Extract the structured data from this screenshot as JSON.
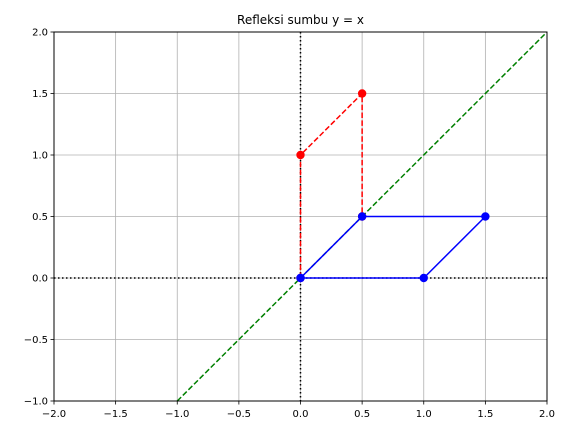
{
  "chart_data": {
    "type": "line",
    "title": "Refleksi sumbu y = x",
    "xlabel": "",
    "ylabel": "",
    "xlim": [
      -2.0,
      2.0
    ],
    "ylim": [
      -1.0,
      2.0
    ],
    "grid": true,
    "x_ticks": [
      -2.0,
      -1.5,
      -1.0,
      -0.5,
      0.0,
      0.5,
      1.0,
      1.5,
      2.0
    ],
    "y_ticks": [
      -1.0,
      -0.5,
      0.0,
      0.5,
      1.0,
      1.5,
      2.0
    ],
    "x_tick_labels": [
      "−2.0",
      "−1.5",
      "−1.0",
      "−0.5",
      "0.0",
      "0.5",
      "1.0",
      "1.5",
      "2.0"
    ],
    "y_tick_labels": [
      "−1.0",
      "−0.5",
      "0.0",
      "0.5",
      "1.0",
      "1.5",
      "2.0"
    ],
    "series": [
      {
        "color": "#0000ff",
        "style": "solid",
        "marker": "circle",
        "points": [
          [
            0,
            0
          ],
          [
            1,
            0
          ],
          [
            1.5,
            0.5
          ],
          [
            0.5,
            0.5
          ],
          [
            0,
            0
          ]
        ]
      },
      {
        "color": "#ff0000",
        "style": "dashed",
        "marker": "circle",
        "points": [
          [
            0,
            0
          ],
          [
            0,
            1
          ],
          [
            0.5,
            1.5
          ],
          [
            0.5,
            0.5
          ]
        ]
      },
      {
        "color": "#008000",
        "style": "dashed",
        "marker": "none",
        "points": [
          [
            -1,
            -1
          ],
          [
            2,
            2
          ]
        ]
      }
    ],
    "reference_lines": [
      {
        "orientation": "horizontal",
        "value": 0,
        "color": "#000000",
        "style": "dotted"
      },
      {
        "orientation": "vertical",
        "value": 0,
        "color": "#000000",
        "style": "dotted"
      }
    ]
  }
}
